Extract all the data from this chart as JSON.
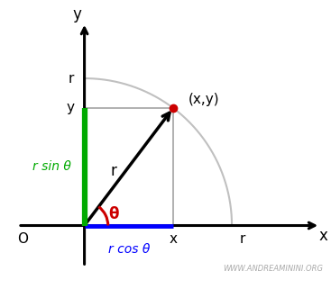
{
  "theta_deg": 53,
  "r": 1.0,
  "background_color": "#ffffff",
  "axis_color": "#000000",
  "green_line_color": "#00aa00",
  "blue_line_color": "#0000ff",
  "gray_line_color": "#aaaaaa",
  "arc_color": "#c0c0c0",
  "theta_arc_color": "#cc0000",
  "point_color": "#cc0000",
  "label_r_sin": "r sin θ",
  "label_r_cos": "r cos θ",
  "label_r_line": "r",
  "label_theta": "θ",
  "label_point": "(x,y)",
  "label_x_tick": "x",
  "label_y_tick": "y",
  "label_r_x": "r",
  "label_r_y": "r",
  "label_O": "O",
  "label_x_axis": "x",
  "label_y_axis": "y",
  "watermark": "WWW.ANDREAMININI.ORG",
  "figsize": [
    3.67,
    3.31
  ],
  "dpi": 100,
  "xlim": [
    -0.55,
    1.65
  ],
  "ylim": [
    -0.38,
    1.42
  ]
}
